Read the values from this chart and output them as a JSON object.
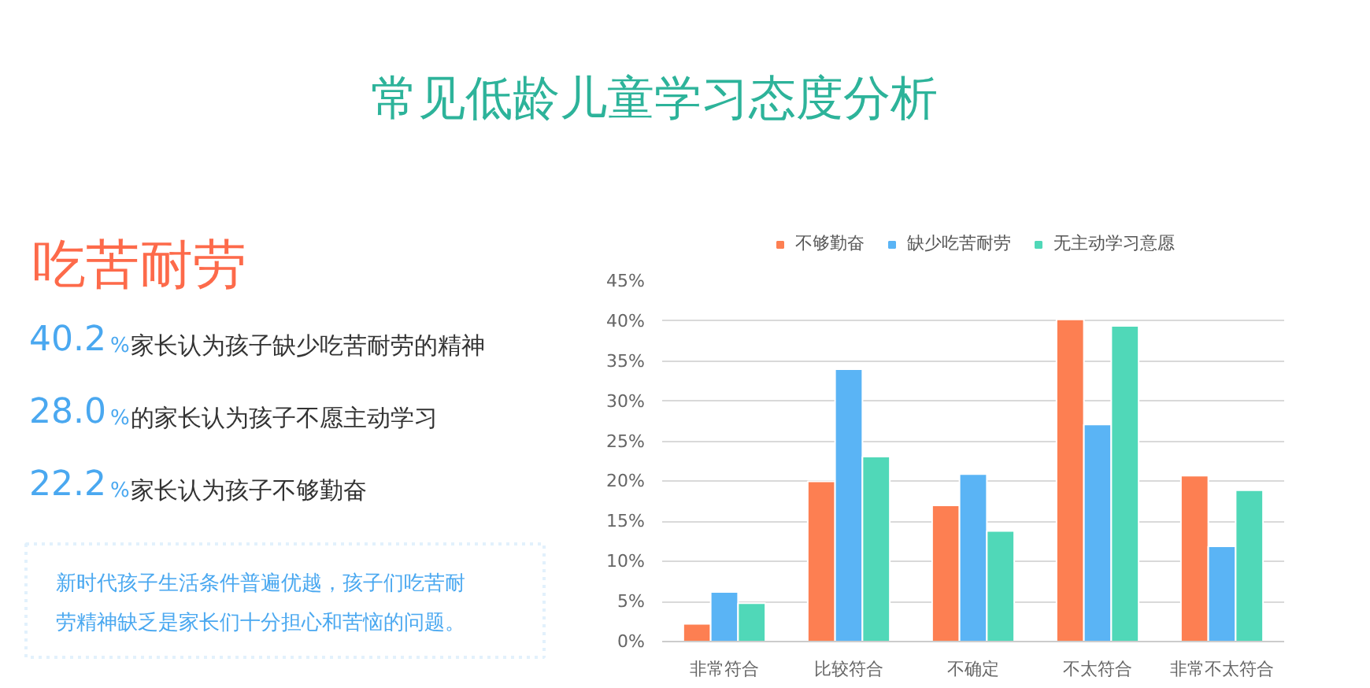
{
  "chart_data": {
    "type": "bar",
    "title": "常见低龄儿童学习态度分析",
    "subtitle": "吃苦耐劳",
    "categories": [
      "非常符合",
      "比较符合",
      "不确定",
      "不太符合",
      "非常不太符合"
    ],
    "series": [
      {
        "name": "不够勤奋",
        "color": "#fd7f52",
        "values": [
          2.2,
          20,
          17,
          40.2,
          20.7
        ]
      },
      {
        "name": "缺少吃苦耐劳",
        "color": "#5ab4f5",
        "values": [
          6.2,
          34,
          20.9,
          27.1,
          11.9
        ]
      },
      {
        "name": "无主动学习意愿",
        "color": "#50d8b8",
        "values": [
          4.8,
          23.1,
          13.8,
          39.4,
          18.9
        ]
      }
    ],
    "ylim": [
      0,
      45
    ],
    "yticks": [
      {
        "value": 0,
        "label": "0%"
      },
      {
        "value": 5,
        "label": "5%"
      },
      {
        "value": 10,
        "label": "10%"
      },
      {
        "value": 15,
        "label": "15%"
      },
      {
        "value": 20,
        "label": "20%"
      },
      {
        "value": 25,
        "label": "25%"
      },
      {
        "value": 30,
        "label": "30%"
      },
      {
        "value": 35,
        "label": "35%"
      },
      {
        "value": 40,
        "label": "40%"
      },
      {
        "value": 45,
        "label": "45%"
      }
    ],
    "grid": "y",
    "legend": "top",
    "annotations": [
      "40.2%家长认为孩子缺少吃苦耐劳的精神",
      "28.0%的家长认为孩子不愿主动学习",
      "22.2%家长认为孩子不够勤奋",
      "新时代孩子生活条件普遍优越，孩子们吃苦耐劳精神缺乏是家长们十分担心和苦恼的问题。"
    ]
  }
}
